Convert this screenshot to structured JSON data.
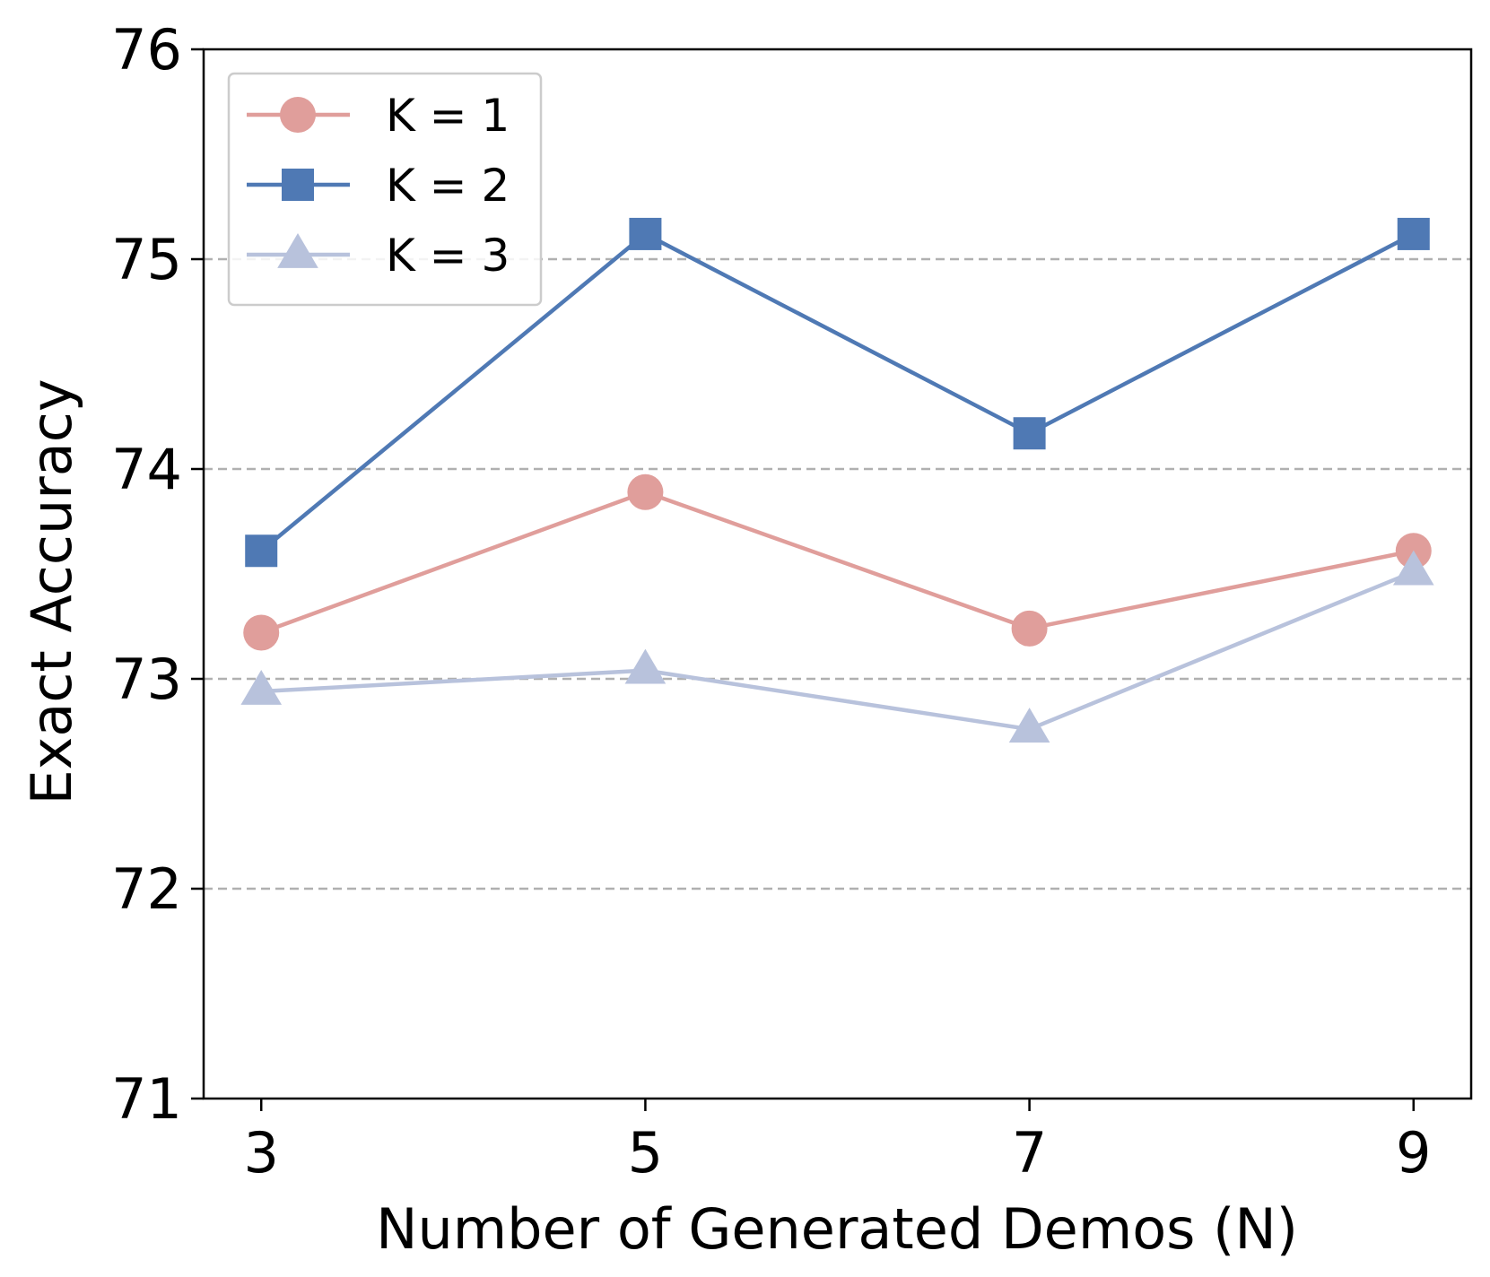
{
  "chart_data": {
    "type": "line",
    "title": "",
    "xlabel": "Number of Generated Demos (N)",
    "ylabel": "Exact Accuracy",
    "x": [
      3,
      5,
      7,
      9
    ],
    "xticks": [
      "3",
      "5",
      "7",
      "9"
    ],
    "xlim": [
      2.7,
      9.3
    ],
    "ylim": [
      71,
      76
    ],
    "yticks": [
      "71",
      "72",
      "73",
      "74",
      "75",
      "76"
    ],
    "grid": "horizontal dashed",
    "legend_position": "top-left",
    "series": [
      {
        "name": "K = 1",
        "values": [
          73.22,
          73.89,
          73.24,
          73.61
        ],
        "color": "#e09e9b",
        "marker": "circle"
      },
      {
        "name": "K = 2",
        "values": [
          73.61,
          75.12,
          74.17,
          75.12
        ],
        "color": "#4f79b4",
        "marker": "square"
      },
      {
        "name": "K = 3",
        "values": [
          72.94,
          73.04,
          72.76,
          73.51
        ],
        "color": "#b8c2dc",
        "marker": "triangle"
      }
    ]
  }
}
